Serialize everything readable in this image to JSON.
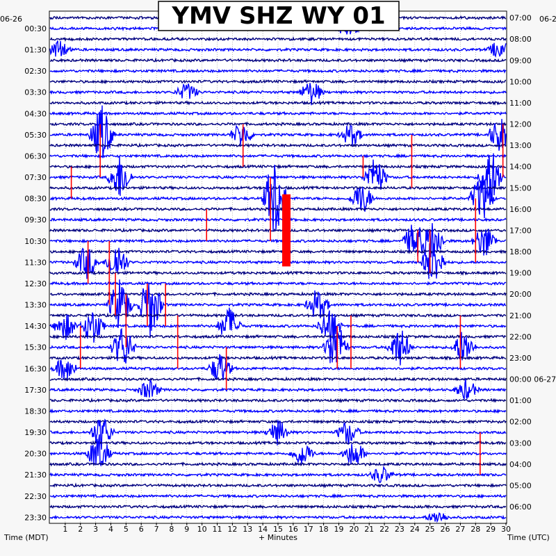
{
  "chart_data": {
    "type": "helicorder",
    "title": "YMV SHZ WY 01",
    "left_date": "06-26",
    "right_date_top": "06-2",
    "left_axis_title": "Time (MDT)",
    "right_axis_title": "Time (UTC)",
    "x_axis_title": "+ Minutes",
    "x_ticks": [
      "1",
      "2",
      "3",
      "4",
      "5",
      "6",
      "7",
      "8",
      "9",
      "10",
      "11",
      "12",
      "13",
      "14",
      "15",
      "16",
      "17",
      "18",
      "19",
      "20",
      "21",
      "22",
      "23",
      "24",
      "25",
      "26",
      "27",
      "28",
      "29",
      "30"
    ],
    "xlim": [
      0,
      30
    ],
    "left_labels": [
      "00:30",
      "01:30",
      "02:30",
      "03:30",
      "04:30",
      "05:30",
      "06:30",
      "07:30",
      "08:30",
      "09:30",
      "10:30",
      "11:30",
      "12:30",
      "13:30",
      "14:30",
      "15:30",
      "16:30",
      "17:30",
      "18:30",
      "19:30",
      "20:30",
      "21:30",
      "22:30",
      "23:30"
    ],
    "right_labels": [
      "07:00",
      "08:00",
      "09:00",
      "10:00",
      "11:00",
      "12:00",
      "13:00",
      "14:00",
      "15:00",
      "16:00",
      "17:00",
      "18:00",
      "19:00",
      "20:00",
      "21:00",
      "22:00",
      "23:00",
      "00:00 06-27",
      "01:00",
      "02:00",
      "03:00",
      "04:00",
      "05:00",
      "06:00"
    ],
    "trace_colors": [
      "#000080",
      "#0000ff"
    ],
    "clip_color": "#ff0000",
    "lines_per_hour": 2,
    "hours": 24,
    "event_lines": [
      {
        "label": "00:30",
        "events": [
          {
            "minute": 19.6,
            "amp": 0.6
          }
        ]
      },
      {
        "label": "01:30",
        "events": [
          {
            "minute": 0.6,
            "amp": 0.7
          },
          {
            "minute": 29.6,
            "amp": 0.8
          }
        ]
      },
      {
        "label": "03:30",
        "events": [
          {
            "minute": 9.0,
            "amp": 0.7
          },
          {
            "minute": 17.2,
            "amp": 1.0
          }
        ]
      },
      {
        "label": "05:30",
        "events": [
          {
            "minute": 3.4,
            "amp": 2.4
          },
          {
            "minute": 12.6,
            "amp": 1.0
          },
          {
            "minute": 19.8,
            "amp": 0.9
          },
          {
            "minute": 29.6,
            "amp": 1.5
          }
        ]
      },
      {
        "label": "07:30",
        "events": [
          {
            "minute": 4.6,
            "amp": 1.9
          },
          {
            "minute": 21.4,
            "amp": 1.6
          },
          {
            "minute": 29.0,
            "amp": 2.4
          }
        ]
      },
      {
        "label": "08:30",
        "events": [
          {
            "minute": 14.8,
            "amp": 3.5
          },
          {
            "minute": 20.5,
            "amp": 1.3
          },
          {
            "minute": 28.4,
            "amp": 2.0
          }
        ]
      },
      {
        "label": "10:30",
        "events": [
          {
            "minute": 24.0,
            "amp": 1.6
          },
          {
            "minute": 25.2,
            "amp": 1.7
          },
          {
            "minute": 28.6,
            "amp": 1.4
          }
        ]
      },
      {
        "label": "11:30",
        "events": [
          {
            "minute": 2.4,
            "amp": 1.4
          },
          {
            "minute": 4.4,
            "amp": 1.6
          },
          {
            "minute": 25.2,
            "amp": 2.0
          }
        ]
      },
      {
        "label": "13:30",
        "events": [
          {
            "minute": 4.6,
            "amp": 2.2
          },
          {
            "minute": 6.6,
            "amp": 2.6
          },
          {
            "minute": 17.6,
            "amp": 1.3
          }
        ]
      },
      {
        "label": "14:30",
        "events": [
          {
            "minute": 1.0,
            "amp": 1.1
          },
          {
            "minute": 2.8,
            "amp": 1.5
          },
          {
            "minute": 11.8,
            "amp": 1.5
          },
          {
            "minute": 18.4,
            "amp": 1.6
          }
        ]
      },
      {
        "label": "15:30",
        "events": [
          {
            "minute": 4.8,
            "amp": 1.8
          },
          {
            "minute": 18.8,
            "amp": 2.2
          },
          {
            "minute": 23.0,
            "amp": 1.6
          },
          {
            "minute": 27.2,
            "amp": 1.4
          }
        ]
      },
      {
        "label": "16:30",
        "events": [
          {
            "minute": 1.0,
            "amp": 1.0
          },
          {
            "minute": 11.2,
            "amp": 1.3
          }
        ]
      },
      {
        "label": "17:30",
        "events": [
          {
            "minute": 6.5,
            "amp": 0.8
          },
          {
            "minute": 27.4,
            "amp": 0.8
          }
        ]
      },
      {
        "label": "19:30",
        "events": [
          {
            "minute": 3.4,
            "amp": 1.4
          },
          {
            "minute": 15.0,
            "amp": 1.0
          },
          {
            "minute": 19.6,
            "amp": 1.0
          }
        ]
      },
      {
        "label": "20:30",
        "events": [
          {
            "minute": 3.2,
            "amp": 1.6
          },
          {
            "minute": 16.6,
            "amp": 1.0
          },
          {
            "minute": 20.0,
            "amp": 1.1
          }
        ]
      },
      {
        "label": "21:30",
        "events": [
          {
            "minute": 21.8,
            "amp": 0.7
          }
        ]
      },
      {
        "label": "23:30",
        "events": [
          {
            "minute": 25.5,
            "amp": 0.5
          }
        ]
      }
    ],
    "clip_marks": [
      {
        "minute": 15.55,
        "label_from": "08:30",
        "label_to": "11:30",
        "bar": true
      },
      {
        "minute": 3.3,
        "label_from": "05:00",
        "label_to": "07:30"
      },
      {
        "minute": 12.7,
        "label_from": "05:00",
        "label_to": "07:00"
      },
      {
        "minute": 1.4,
        "label_from": "07:00",
        "label_to": "08:30"
      },
      {
        "minute": 20.6,
        "label_from": "06:30",
        "label_to": "07:30"
      },
      {
        "minute": 23.8,
        "label_from": "05:30",
        "label_to": "08:00"
      },
      {
        "minute": 29.8,
        "label_from": "05:00",
        "label_to": "07:30"
      },
      {
        "minute": 14.5,
        "label_from": "07:30",
        "label_to": "10:30"
      },
      {
        "minute": 10.3,
        "label_from": "09:00",
        "label_to": "10:30"
      },
      {
        "minute": 28.0,
        "label_from": "08:30",
        "label_to": "11:30"
      },
      {
        "minute": 24.2,
        "label_from": "10:00",
        "label_to": "11:30"
      },
      {
        "minute": 25.0,
        "label_from": "10:00",
        "label_to": "12:00"
      },
      {
        "minute": 2.5,
        "label_from": "10:30",
        "label_to": "12:30"
      },
      {
        "minute": 3.9,
        "label_from": "10:30",
        "label_to": "13:30"
      },
      {
        "minute": 4.3,
        "label_from": "12:00",
        "label_to": "14:00"
      },
      {
        "minute": 6.4,
        "label_from": "12:30",
        "label_to": "14:30"
      },
      {
        "minute": 7.6,
        "label_from": "12:30",
        "label_to": "14:30"
      },
      {
        "minute": 5.0,
        "label_from": "13:00",
        "label_to": "15:30"
      },
      {
        "minute": 8.4,
        "label_from": "14:00",
        "label_to": "16:30"
      },
      {
        "minute": 2.0,
        "label_from": "14:30",
        "label_to": "16:30"
      },
      {
        "minute": 11.6,
        "label_from": "15:30",
        "label_to": "17:30"
      },
      {
        "minute": 18.9,
        "label_from": "14:30",
        "label_to": "16:30"
      },
      {
        "minute": 19.8,
        "label_from": "14:00",
        "label_to": "16:30"
      },
      {
        "minute": 27.0,
        "label_from": "14:00",
        "label_to": "16:30"
      },
      {
        "minute": 28.3,
        "label_from": "19:30",
        "label_to": "21:30"
      }
    ]
  }
}
